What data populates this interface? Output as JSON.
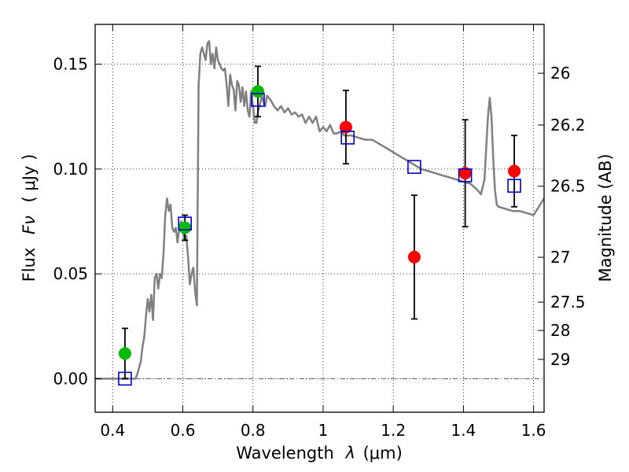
{
  "chart_data": {
    "type": "scatter",
    "xlabel": "Wavelength",
    "xlabel_symbol": "λ",
    "xlabel_unit": "(μm)",
    "ylabel": "Flux",
    "ylabel_symbol": "Fν",
    "ylabel_unit": "( μJy )",
    "ylabel_right": "Magnitude (AB)",
    "xlim": [
      0.35,
      1.63
    ],
    "ylim": [
      -0.016,
      0.169
    ],
    "x_ticks": [
      0.4,
      0.6,
      0.8,
      1.0,
      1.2,
      1.4,
      1.6
    ],
    "x_tick_labels": [
      "0.4",
      "0.6",
      "0.8",
      "1",
      "1.2",
      "1.4",
      "1.6"
    ],
    "y_ticks": [
      0.0,
      0.05,
      0.1,
      0.15
    ],
    "y_tick_labels": [
      "0.00",
      "0.05",
      "0.10",
      "0.15"
    ],
    "right_ticks": [
      {
        "label": "26",
        "flux": 0.1457
      },
      {
        "label": "26.2",
        "flux": 0.121
      },
      {
        "label": "26.5",
        "flux": 0.0918
      },
      {
        "label": "27",
        "flux": 0.0579
      },
      {
        "label": "27.5",
        "flux": 0.0365
      },
      {
        "label": "28",
        "flux": 0.023
      },
      {
        "label": "29",
        "flux": 0.0092
      }
    ],
    "grid": true,
    "zero_line": true,
    "series": [
      {
        "kind": "points_with_errorbars",
        "color": "#00bb00",
        "points": [
          {
            "x": 0.435,
            "y": 0.012,
            "yerr": 0.012
          },
          {
            "x": 0.606,
            "y": 0.072,
            "yerr": 0.006
          },
          {
            "x": 0.814,
            "y": 0.137,
            "yerr": 0.012
          }
        ]
      },
      {
        "kind": "points_with_errorbars",
        "color": "#ff0000",
        "points": [
          {
            "x": 1.065,
            "y": 0.12,
            "yerr": 0.0175
          },
          {
            "x": 1.26,
            "y": 0.058,
            "yerr": 0.0295
          },
          {
            "x": 1.405,
            "y": 0.098,
            "yerr": 0.0255
          },
          {
            "x": 1.545,
            "y": 0.099,
            "yerr": 0.017
          }
        ]
      },
      {
        "kind": "open_squares",
        "color": "#0000cc",
        "points": [
          {
            "x": 0.435,
            "y": 0.0
          },
          {
            "x": 0.606,
            "y": 0.074
          },
          {
            "x": 0.814,
            "y": 0.133
          },
          {
            "x": 1.07,
            "y": 0.115
          },
          {
            "x": 1.26,
            "y": 0.101
          },
          {
            "x": 1.405,
            "y": 0.097
          },
          {
            "x": 1.545,
            "y": 0.092
          }
        ]
      },
      {
        "kind": "model_spectrum",
        "color": "#808080",
        "x": [
          0.35,
          0.465,
          0.47,
          0.48,
          0.485,
          0.49,
          0.495,
          0.5,
          0.505,
          0.51,
          0.515,
          0.52,
          0.525,
          0.53,
          0.535,
          0.54,
          0.545,
          0.55,
          0.555,
          0.56,
          0.565,
          0.57,
          0.575,
          0.58,
          0.585,
          0.59,
          0.595,
          0.6,
          0.605,
          0.61,
          0.615,
          0.62,
          0.625,
          0.63,
          0.635,
          0.64,
          0.645,
          0.65,
          0.655,
          0.66,
          0.665,
          0.67,
          0.675,
          0.68,
          0.685,
          0.69,
          0.695,
          0.7,
          0.705,
          0.71,
          0.715,
          0.72,
          0.725,
          0.73,
          0.735,
          0.74,
          0.745,
          0.75,
          0.755,
          0.76,
          0.765,
          0.77,
          0.775,
          0.78,
          0.785,
          0.79,
          0.795,
          0.8,
          0.805,
          0.81,
          0.815,
          0.82,
          0.825,
          0.83,
          0.835,
          0.84,
          0.85,
          0.86,
          0.87,
          0.88,
          0.89,
          0.9,
          0.91,
          0.92,
          0.93,
          0.94,
          0.95,
          0.96,
          0.97,
          0.98,
          0.99,
          1.0,
          1.01,
          1.02,
          1.03,
          1.04,
          1.05,
          1.06,
          1.08,
          1.1,
          1.12,
          1.14,
          1.16,
          1.18,
          1.2,
          1.22,
          1.24,
          1.26,
          1.28,
          1.3,
          1.32,
          1.34,
          1.36,
          1.38,
          1.4,
          1.42,
          1.44,
          1.45,
          1.46,
          1.465,
          1.47,
          1.475,
          1.48,
          1.485,
          1.49,
          1.495,
          1.5,
          1.52,
          1.54,
          1.56,
          1.58,
          1.6,
          1.63
        ],
        "y": [
          0.0,
          0.0,
          0.002,
          0.008,
          0.015,
          0.02,
          0.03,
          0.038,
          0.032,
          0.04,
          0.028,
          0.048,
          0.05,
          0.043,
          0.05,
          0.048,
          0.06,
          0.078,
          0.086,
          0.08,
          0.083,
          0.072,
          0.07,
          0.072,
          0.065,
          0.072,
          0.075,
          0.07,
          0.066,
          0.068,
          0.058,
          0.045,
          0.05,
          0.053,
          0.042,
          0.035,
          0.14,
          0.155,
          0.158,
          0.155,
          0.152,
          0.16,
          0.161,
          0.15,
          0.155,
          0.148,
          0.158,
          0.152,
          0.15,
          0.148,
          0.147,
          0.148,
          0.14,
          0.13,
          0.145,
          0.14,
          0.138,
          0.128,
          0.142,
          0.14,
          0.132,
          0.139,
          0.13,
          0.137,
          0.128,
          0.125,
          0.137,
          0.13,
          0.122,
          0.122,
          0.128,
          0.131,
          0.135,
          0.132,
          0.13,
          0.135,
          0.133,
          0.13,
          0.128,
          0.13,
          0.127,
          0.129,
          0.126,
          0.127,
          0.125,
          0.126,
          0.122,
          0.125,
          0.122,
          0.125,
          0.118,
          0.12,
          0.118,
          0.121,
          0.117,
          0.117,
          0.118,
          0.116,
          0.116,
          0.115,
          0.114,
          0.114,
          0.112,
          0.11,
          0.108,
          0.106,
          0.104,
          0.102,
          0.1,
          0.099,
          0.098,
          0.097,
          0.096,
          0.095,
          0.094,
          0.093,
          0.09,
          0.088,
          0.095,
          0.11,
          0.125,
          0.134,
          0.125,
          0.105,
          0.09,
          0.083,
          0.082,
          0.081,
          0.08,
          0.08,
          0.079,
          0.078,
          0.086
        ]
      }
    ]
  }
}
